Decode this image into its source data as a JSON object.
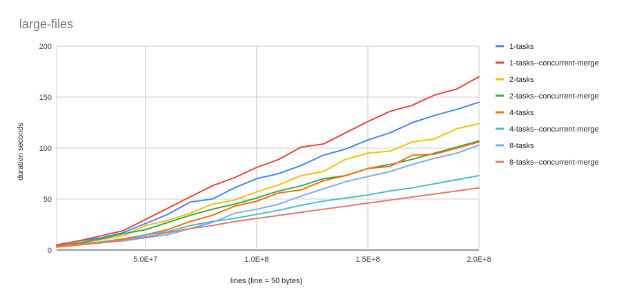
{
  "chart_data": {
    "type": "line",
    "title": "large-files",
    "xlabel": "lines (line = 50 bytes)",
    "ylabel": "duration seconds",
    "x": [
      10000000,
      20000000,
      30000000,
      40000000,
      50000000,
      60000000,
      70000000,
      80000000,
      90000000,
      100000000,
      110000000,
      120000000,
      130000000,
      140000000,
      150000000,
      160000000,
      170000000,
      180000000,
      190000000,
      200000000
    ],
    "xlim": [
      10000000,
      200000000
    ],
    "ylim": [
      0,
      200
    ],
    "x_ticks": [
      {
        "value": 50000000,
        "label": "5.0E+7"
      },
      {
        "value": 100000000,
        "label": "1.0E+8"
      },
      {
        "value": 150000000,
        "label": "1.5E+8"
      },
      {
        "value": 200000000,
        "label": "2.0E+8"
      }
    ],
    "y_ticks": [
      {
        "value": 0,
        "label": "0"
      },
      {
        "value": 50,
        "label": "50"
      },
      {
        "value": 100,
        "label": "100"
      },
      {
        "value": 150,
        "label": "150"
      },
      {
        "value": 200,
        "label": "200"
      }
    ],
    "grid": true,
    "legend_position": "right",
    "series": [
      {
        "name": "1-tasks",
        "color": "#4285f4",
        "values": [
          5,
          9,
          12,
          17,
          26,
          35,
          47,
          50,
          61,
          70,
          75,
          83,
          93,
          99,
          108,
          115,
          125,
          132,
          138,
          145
        ]
      },
      {
        "name": "1-tasks--concurrent-merge",
        "color": "#ea4335",
        "values": [
          5,
          9,
          14,
          19,
          30,
          41,
          52,
          63,
          71,
          81,
          89,
          101,
          104,
          115,
          126,
          136,
          142,
          152,
          158,
          170
        ]
      },
      {
        "name": "2-tasks",
        "color": "#fbbc04",
        "values": [
          4,
          7,
          10,
          14,
          24,
          29,
          36,
          45,
          49,
          57,
          64,
          73,
          77,
          89,
          95,
          97,
          106,
          109,
          119,
          124
        ]
      },
      {
        "name": "2-tasks--concurrent-merge",
        "color": "#34a853",
        "values": [
          4,
          7,
          11,
          16,
          20,
          27,
          34,
          40,
          45,
          51,
          58,
          63,
          70,
          73,
          80,
          84,
          89,
          95,
          101,
          107
        ]
      },
      {
        "name": "4-tasks",
        "color": "#ff6d01",
        "values": [
          4,
          6,
          8,
          11,
          15,
          20,
          28,
          34,
          43,
          48,
          56,
          59,
          68,
          73,
          80,
          82,
          93,
          94,
          100,
          106
        ]
      },
      {
        "name": "4-tasks--concurrent-merge",
        "color": "#46bdc6",
        "values": [
          3,
          5,
          8,
          10,
          15,
          18,
          24,
          28,
          31,
          35,
          39,
          44,
          48,
          51,
          54,
          58,
          61,
          65,
          69,
          73
        ]
      },
      {
        "name": "8-tasks",
        "color": "#7baaf7",
        "values": [
          3,
          5,
          7,
          9,
          12,
          15,
          21,
          27,
          36,
          40,
          45,
          53,
          60,
          67,
          72,
          77,
          84,
          90,
          95,
          103
        ]
      },
      {
        "name": "8-tasks--concurrent-merge",
        "color": "#e8756c",
        "values": [
          3,
          5,
          7,
          10,
          13,
          17,
          21,
          24,
          28,
          31,
          34,
          37,
          40,
          43,
          46,
          49,
          52,
          55,
          58,
          61
        ]
      }
    ]
  }
}
